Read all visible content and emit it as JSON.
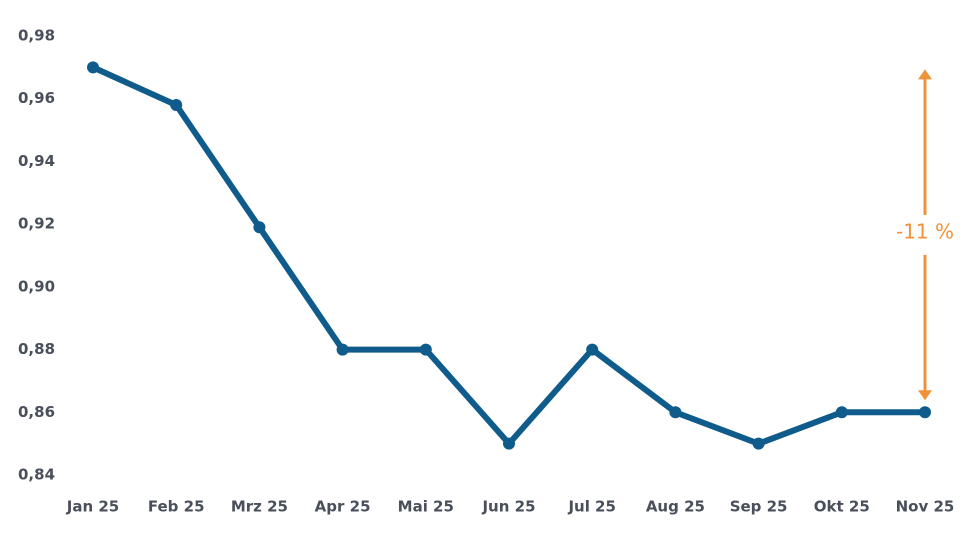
{
  "chart_data": {
    "type": "line",
    "categories": [
      "Jan 25",
      "Feb 25",
      "Mrz 25",
      "Apr 25",
      "Mai 25",
      "Jun 25",
      "Jul 25",
      "Aug 25",
      "Sep 25",
      "Okt 25",
      "Nov 25"
    ],
    "series": [
      {
        "color": "#0f5c8c",
        "values": [
          0.97,
          0.958,
          0.919,
          0.88,
          0.88,
          0.85,
          0.88,
          0.86,
          0.85,
          0.86,
          0.86
        ]
      }
    ],
    "ylim": [
      0.84,
      0.98
    ],
    "yticks": [
      {
        "value": 0.84,
        "label": "0,84"
      },
      {
        "value": 0.86,
        "label": "0,86"
      },
      {
        "value": 0.88,
        "label": "0,88"
      },
      {
        "value": 0.9,
        "label": "0,90"
      },
      {
        "value": 0.92,
        "label": "0,92"
      },
      {
        "value": 0.94,
        "label": "0,94"
      },
      {
        "value": 0.96,
        "label": "0,96"
      },
      {
        "value": 0.98,
        "label": "0,98"
      }
    ],
    "annotation": {
      "text": "-11 %",
      "color": "#f0923a"
    }
  }
}
